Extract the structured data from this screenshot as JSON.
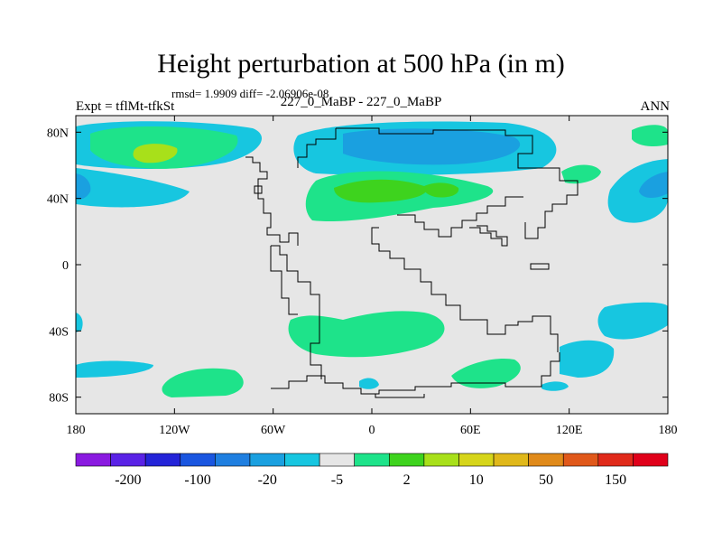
{
  "title": "Height perturbation at 500 hPa (in m)",
  "stats": "rmsd= 1.9909 diff= -2.06906e-08",
  "expt": "Expt = tflMt-tfkSt",
  "subtitle": "227_0_MaBP - 227_0_MaBP",
  "season": "ANN",
  "chart_data": {
    "type": "heatmap",
    "title": "Height perturbation at 500 hPa (in m)",
    "x_tick_labels": [
      "180",
      "120W",
      "60W",
      "0",
      "60E",
      "120E",
      "180"
    ],
    "y_tick_labels": [
      "80N",
      "40N",
      "0",
      "40S",
      "80S"
    ],
    "x_range": [
      -180,
      180
    ],
    "y_range": [
      -90,
      90
    ],
    "colorbar": {
      "labels": [
        "-200",
        "-100",
        "-20",
        "-5",
        "2",
        "10",
        "50",
        "150"
      ],
      "colors": [
        "#8a1ae0",
        "#5a22e6",
        "#2424d8",
        "#1a56e0",
        "#1f7fe0",
        "#1aa0e0",
        "#17c6e0",
        "#e6e6e6",
        "#1ee38a",
        "#3ed31e",
        "#a8e01a",
        "#d6d51a",
        "#e0b81a",
        "#e08a1a",
        "#e0581a",
        "#e02a1a",
        "#e0001a"
      ]
    },
    "background_color": "#e6e6e6",
    "regions_described": [
      "Light-blue/cyan negative anomalies over northern high latitudes near 80N and 40N",
      "Green positive anomalies over North Pacific (~60N) and Europe/Asia (~45N)",
      "Green positive anomalies in Southern Hemisphere midlatitudes (~40S-80S)",
      "Cyan negative anomalies near 60S-80S at several longitudes"
    ]
  }
}
